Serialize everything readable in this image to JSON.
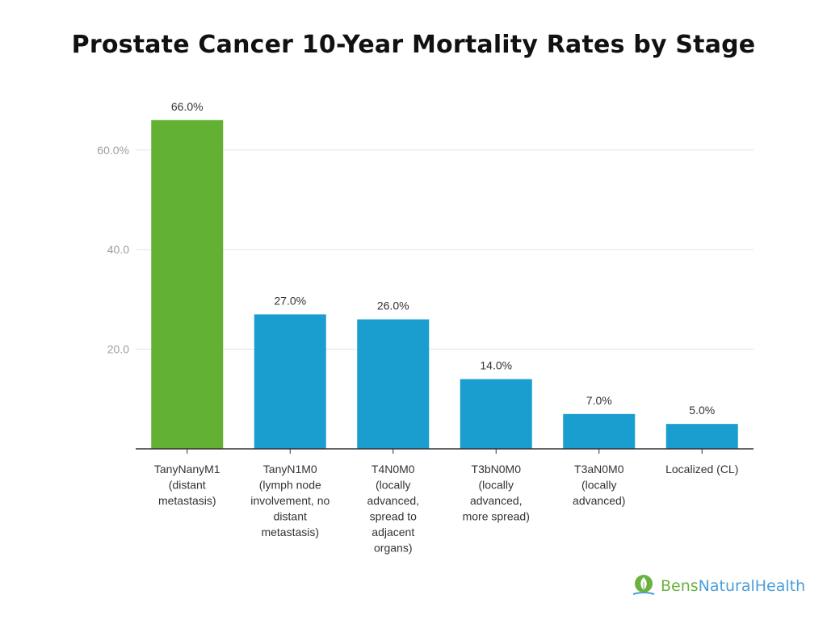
{
  "chart_data": {
    "type": "bar",
    "title": "Prostate Cancer 10-Year Mortality Rates by Stage",
    "xlabel": "",
    "ylabel": "",
    "ylim": [
      0,
      72
    ],
    "yticks": [
      {
        "value": 20,
        "label": "20.0"
      },
      {
        "value": 40,
        "label": "40.0"
      },
      {
        "value": 60,
        "label": "60.0%"
      }
    ],
    "grid": true,
    "categories": [
      [
        "TanyNanyM1",
        "(distant",
        "metastasis)"
      ],
      [
        "TanyN1M0",
        "(lymph node",
        "involvement, no",
        "distant",
        "metastasis)"
      ],
      [
        "T4N0M0",
        "(locally",
        "advanced,",
        "spread to",
        "adjacent",
        "organs)"
      ],
      [
        "T3bN0M0",
        "(locally",
        "advanced,",
        "more spread)"
      ],
      [
        "T3aN0M0",
        "(locally",
        "advanced)"
      ],
      [
        "Localized (CL)"
      ]
    ],
    "values": [
      66.0,
      27.0,
      26.0,
      14.0,
      7.0,
      5.0
    ],
    "data_labels": [
      "66.0%",
      "27.0%",
      "26.0%",
      "14.0%",
      "7.0%",
      "5.0%"
    ],
    "colors": [
      "#63b132",
      "#1a9ecf",
      "#1a9ecf",
      "#1a9ecf",
      "#1a9ecf",
      "#1a9ecf"
    ]
  },
  "brand": {
    "logo_part1": "Bens",
    "logo_part2": "NaturalHealth",
    "icon": "leaf-icon"
  }
}
